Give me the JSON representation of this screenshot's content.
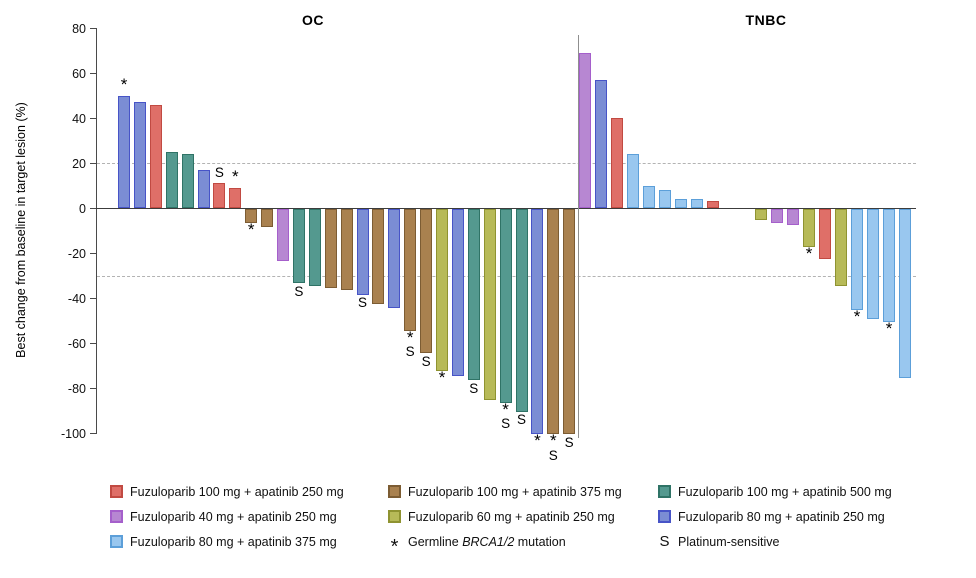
{
  "chart_data": {
    "type": "bar",
    "subtype": "waterfall",
    "ylabel": "Best change from baseline in target lesion (%)",
    "ylim": [
      -100,
      80
    ],
    "yticks": [
      80,
      60,
      40,
      20,
      0,
      -20,
      -40,
      -60,
      -80,
      -100
    ],
    "reference_lines_pct": [
      20,
      -30
    ],
    "grid": "dashed reference lines at +20% and -30% only",
    "marker_meanings": {
      "*": "Germline BRCA1/2 mutation",
      "S": "Platinum-sensitive"
    },
    "palette": {
      "red": {
        "label": "Fuzuloparib 100 mg + apatinib 250 mg",
        "fill": "#DF6F68",
        "stroke": "#C14A42"
      },
      "brown": {
        "label": "Fuzuloparib 100 mg + apatinib 375 mg",
        "fill": "#A9814F",
        "stroke": "#7C5C33"
      },
      "teal": {
        "label": "Fuzuloparib 100 mg + apatinib 500 mg",
        "fill": "#54998F",
        "stroke": "#2F7366"
      },
      "purple": {
        "label": "Fuzuloparib 40 mg + apatinib 250 mg",
        "fill": "#B787D2",
        "stroke": "#A55FCB"
      },
      "yellow": {
        "label": "Fuzuloparib 60 mg + apatinib 250 mg",
        "fill": "#B7BA58",
        "stroke": "#8F9331"
      },
      "blue": {
        "label": "Fuzuloparib 80 mg + apatinib 250 mg",
        "fill": "#7B8DD4",
        "stroke": "#4754C7"
      },
      "lightblue": {
        "label": "Fuzuloparib 80 mg + apatinib 375 mg",
        "fill": "#99C7EF",
        "stroke": "#5C9FD9"
      }
    },
    "groups": [
      {
        "name": "OC",
        "bars": [
          {
            "v": 50,
            "c": "blue",
            "m": "*"
          },
          {
            "v": 47,
            "c": "blue"
          },
          {
            "v": 46,
            "c": "red"
          },
          {
            "v": 25,
            "c": "teal"
          },
          {
            "v": 24,
            "c": "teal"
          },
          {
            "v": 17,
            "c": "blue"
          },
          {
            "v": 11,
            "c": "red",
            "m": "S"
          },
          {
            "v": 9,
            "c": "red",
            "m": "*"
          },
          {
            "v": -6,
            "c": "brown",
            "m": "*"
          },
          {
            "v": -8,
            "c": "brown"
          },
          {
            "v": -23,
            "c": "purple"
          },
          {
            "v": -33,
            "c": "teal",
            "m": "S"
          },
          {
            "v": -34,
            "c": "teal"
          },
          {
            "v": -35,
            "c": "brown"
          },
          {
            "v": -36,
            "c": "brown"
          },
          {
            "v": -38,
            "c": "blue",
            "m": "S"
          },
          {
            "v": -42,
            "c": "brown"
          },
          {
            "v": -44,
            "c": "blue"
          },
          {
            "v": -54,
            "c": "brown",
            "m": "*S"
          },
          {
            "v": -64,
            "c": "brown",
            "m": "S"
          },
          {
            "v": -72,
            "c": "yellow",
            "m": "*"
          },
          {
            "v": -74,
            "c": "blue"
          },
          {
            "v": -76,
            "c": "teal",
            "m": "S"
          },
          {
            "v": -85,
            "c": "yellow"
          },
          {
            "v": -86,
            "c": "teal",
            "m": "*S"
          },
          {
            "v": -90,
            "c": "teal",
            "m": "S"
          },
          {
            "v": -100,
            "c": "blue",
            "m": "*"
          },
          {
            "v": -100,
            "c": "brown",
            "m": "*S"
          },
          {
            "v": -100,
            "c": "brown",
            "m": "S"
          }
        ]
      },
      {
        "name": "TNBC",
        "bars": [
          {
            "v": 69,
            "c": "purple"
          },
          {
            "v": 57,
            "c": "blue"
          },
          {
            "v": 40,
            "c": "red"
          },
          {
            "v": 24,
            "c": "lightblue"
          },
          {
            "v": 10,
            "c": "lightblue"
          },
          {
            "v": 8,
            "c": "lightblue"
          },
          {
            "v": 4,
            "c": "lightblue"
          },
          {
            "v": 4,
            "c": "lightblue"
          },
          {
            "v": 3,
            "c": "red"
          },
          {
            "v": -5,
            "c": "yellow"
          },
          {
            "v": -6,
            "c": "purple"
          },
          {
            "v": -7,
            "c": "purple"
          },
          {
            "v": -17,
            "c": "yellow",
            "m": "*"
          },
          {
            "v": -22,
            "c": "red"
          },
          {
            "v": -34,
            "c": "yellow"
          },
          {
            "v": -45,
            "c": "lightblue",
            "m": "*"
          },
          {
            "v": -49,
            "c": "lightblue"
          },
          {
            "v": -50,
            "c": "lightblue",
            "m": "*"
          },
          {
            "v": -75,
            "c": "lightblue"
          }
        ]
      }
    ]
  },
  "legend": {
    "columns": [
      [
        {
          "marker": "swatch",
          "color": "red",
          "label": "Fuzuloparib 100 mg + apatinib 250 mg"
        },
        {
          "marker": "swatch",
          "color": "purple",
          "label": "Fuzuloparib 40 mg + apatinib 250 mg"
        },
        {
          "marker": "swatch",
          "color": "lightblue",
          "label": "Fuzuloparib 80 mg + apatinib 375 mg"
        }
      ],
      [
        {
          "marker": "swatch",
          "color": "brown",
          "label": "Fuzuloparib 100 mg + apatinib 375 mg"
        },
        {
          "marker": "swatch",
          "color": "yellow",
          "label": "Fuzuloparib 60 mg + apatinib 250 mg"
        },
        {
          "marker": "symbol",
          "symbol": "*",
          "label_parts": [
            {
              "text": "Germline "
            },
            {
              "text": "BRCA1/2",
              "italic": true
            },
            {
              "text": " mutation"
            }
          ]
        }
      ],
      [
        {
          "marker": "swatch",
          "color": "teal",
          "label": "Fuzuloparib 100 mg + apatinib 500 mg"
        },
        {
          "marker": "swatch",
          "color": "blue",
          "label": "Fuzuloparib 80 mg + apatinib 250 mg"
        },
        {
          "marker": "symbol",
          "symbol": "S",
          "label": "Platinum-sensitive"
        }
      ]
    ]
  }
}
